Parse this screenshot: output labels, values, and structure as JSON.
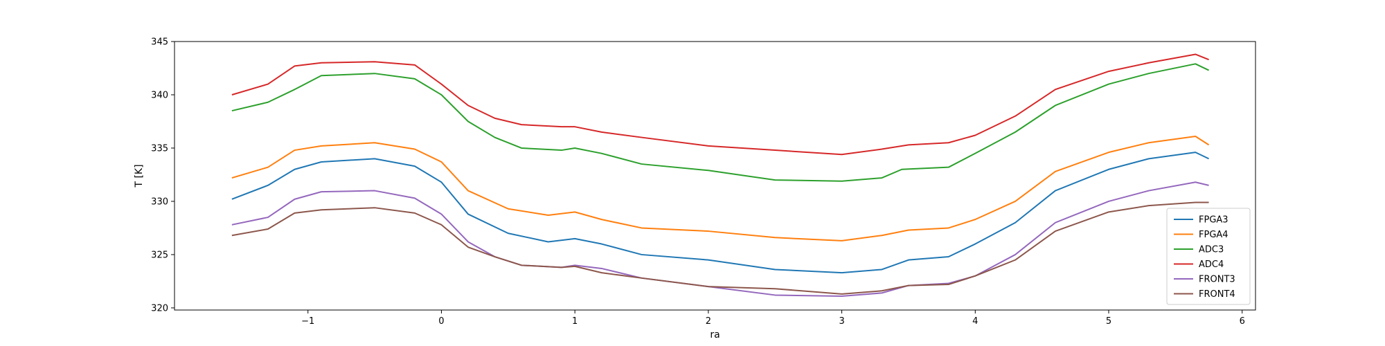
{
  "chart_data": {
    "type": "line",
    "title": "",
    "xlabel": "ra",
    "ylabel": "T [K]",
    "xlim": [
      -2.0,
      6.1
    ],
    "ylim": [
      319.8,
      345.0
    ],
    "xticks": [
      -1,
      0,
      1,
      2,
      3,
      4,
      5,
      6
    ],
    "xtick_labels": [
      "−1",
      "0",
      "1",
      "2",
      "3",
      "4",
      "5",
      "6"
    ],
    "yticks": [
      320,
      325,
      330,
      335,
      340,
      345
    ],
    "ytick_labels": [
      "320",
      "325",
      "330",
      "335",
      "340",
      "345"
    ],
    "grid": false,
    "legend": "lower-right",
    "series": [
      {
        "name": "FPGA3",
        "color": "#1f77b4",
        "x": [
          -1.57,
          -1.3,
          -1.1,
          -0.9,
          -0.5,
          -0.2,
          0.0,
          0.2,
          0.5,
          0.8,
          1.0,
          1.2,
          1.5,
          2.0,
          2.5,
          3.0,
          3.3,
          3.5,
          3.8,
          4.0,
          4.3,
          4.6,
          5.0,
          5.3,
          5.65,
          5.75
        ],
        "y": [
          330.2,
          331.5,
          333.0,
          333.7,
          334.0,
          333.3,
          331.8,
          328.8,
          327.0,
          326.2,
          326.5,
          326.0,
          325.0,
          324.5,
          323.6,
          323.3,
          323.6,
          324.5,
          324.8,
          326.0,
          328.0,
          331.0,
          333.0,
          334.0,
          334.6,
          334.0
        ]
      },
      {
        "name": "FPGA4",
        "color": "#ff7f0e",
        "x": [
          -1.57,
          -1.3,
          -1.1,
          -0.9,
          -0.5,
          -0.2,
          0.0,
          0.2,
          0.5,
          0.8,
          1.0,
          1.2,
          1.5,
          2.0,
          2.5,
          3.0,
          3.3,
          3.5,
          3.8,
          4.0,
          4.3,
          4.6,
          5.0,
          5.3,
          5.65,
          5.75
        ],
        "y": [
          332.2,
          333.2,
          334.8,
          335.2,
          335.5,
          334.9,
          333.7,
          331.0,
          329.3,
          328.7,
          329.0,
          328.3,
          327.5,
          327.2,
          326.6,
          326.3,
          326.8,
          327.3,
          327.5,
          328.3,
          330.0,
          332.8,
          334.6,
          335.5,
          336.1,
          335.3
        ]
      },
      {
        "name": "ADC3",
        "color": "#2ca02c",
        "x": [
          -1.57,
          -1.3,
          -1.1,
          -0.9,
          -0.5,
          -0.2,
          0.0,
          0.2,
          0.4,
          0.6,
          0.9,
          1.0,
          1.2,
          1.5,
          2.0,
          2.5,
          3.0,
          3.3,
          3.45,
          3.8,
          4.0,
          4.3,
          4.6,
          5.0,
          5.3,
          5.65,
          5.75
        ],
        "y": [
          338.5,
          339.3,
          340.5,
          341.8,
          342.0,
          341.5,
          340.0,
          337.5,
          336.0,
          335.0,
          334.8,
          335.0,
          334.5,
          333.5,
          332.9,
          332.0,
          331.9,
          332.2,
          333.0,
          333.2,
          334.5,
          336.5,
          339.0,
          341.0,
          342.0,
          342.9,
          342.3
        ]
      },
      {
        "name": "ADC4",
        "color": "#d62728",
        "x": [
          -1.57,
          -1.3,
          -1.1,
          -0.9,
          -0.5,
          -0.2,
          0.0,
          0.2,
          0.4,
          0.6,
          0.9,
          1.0,
          1.2,
          1.5,
          2.0,
          2.5,
          3.0,
          3.3,
          3.5,
          3.8,
          4.0,
          4.3,
          4.6,
          5.0,
          5.3,
          5.65,
          5.75
        ],
        "y": [
          340.0,
          341.0,
          342.7,
          343.0,
          343.1,
          342.8,
          341.0,
          339.0,
          337.8,
          337.2,
          337.0,
          337.0,
          336.5,
          336.0,
          335.2,
          334.8,
          334.4,
          334.9,
          335.3,
          335.5,
          336.2,
          338.0,
          340.5,
          342.2,
          343.0,
          343.8,
          343.3
        ]
      },
      {
        "name": "FRONT3",
        "color": "#9467bd",
        "x": [
          -1.57,
          -1.3,
          -1.1,
          -0.9,
          -0.5,
          -0.2,
          0.0,
          0.2,
          0.4,
          0.6,
          0.9,
          1.0,
          1.2,
          1.5,
          2.0,
          2.5,
          3.0,
          3.3,
          3.5,
          3.8,
          4.0,
          4.3,
          4.6,
          5.0,
          5.3,
          5.65,
          5.75
        ],
        "y": [
          327.8,
          328.5,
          330.2,
          330.9,
          331.0,
          330.3,
          328.8,
          326.2,
          324.8,
          324.0,
          323.8,
          324.0,
          323.7,
          322.8,
          322.0,
          321.2,
          321.1,
          321.4,
          322.1,
          322.3,
          323.0,
          325.0,
          328.0,
          330.0,
          331.0,
          331.8,
          331.5
        ]
      },
      {
        "name": "FRONT4",
        "color": "#8c564b",
        "x": [
          -1.57,
          -1.3,
          -1.1,
          -0.9,
          -0.5,
          -0.2,
          0.0,
          0.2,
          0.4,
          0.6,
          0.9,
          1.0,
          1.2,
          1.5,
          2.0,
          2.5,
          3.0,
          3.3,
          3.5,
          3.8,
          4.0,
          4.3,
          4.6,
          5.0,
          5.3,
          5.65,
          5.75
        ],
        "y": [
          326.8,
          327.4,
          328.9,
          329.2,
          329.4,
          328.9,
          327.8,
          325.7,
          324.8,
          324.0,
          323.8,
          323.9,
          323.3,
          322.8,
          322.0,
          321.8,
          321.3,
          321.6,
          322.1,
          322.2,
          323.0,
          324.5,
          327.2,
          329.0,
          329.6,
          329.9,
          329.9
        ]
      }
    ]
  }
}
